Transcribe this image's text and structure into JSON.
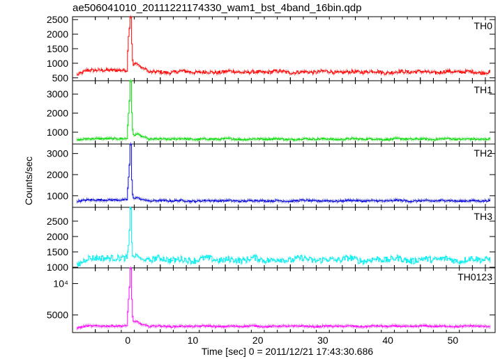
{
  "title": "ae506041010_20111221174330_wam1_bst_4band_16bin.qdp",
  "xlabel": "Time [sec] 0 = 2011/12/21 17:43:30.686",
  "ylabel": "Counts/sec",
  "chart_data": {
    "type": "line",
    "x_range": [
      -8.5,
      56.5
    ],
    "x_ticks": [
      0,
      10,
      20,
      30,
      40,
      50
    ],
    "x_tick_labels": [
      "0",
      "10",
      "20",
      "30",
      "40",
      "50"
    ],
    "panels": [
      {
        "name": "TH0",
        "color": "#ff0000",
        "ylim": [
          400,
          2600
        ],
        "y_ticks": [
          500,
          1000,
          1500,
          2000,
          2500
        ],
        "y_tick_labels": [
          "500",
          "1000",
          "1500",
          "2000",
          "2500"
        ],
        "baseline": 700,
        "noise": 55,
        "pre_start": 600,
        "pre_end": 760,
        "spike": [
          [
            -0.1,
            900
          ],
          [
            0.0,
            1900
          ],
          [
            0.15,
            2000
          ],
          [
            0.3,
            2600
          ],
          [
            0.45,
            2600
          ],
          [
            0.6,
            1500
          ],
          [
            0.75,
            900
          ],
          [
            1.0,
            980
          ],
          [
            1.4,
            1000
          ],
          [
            2.0,
            850
          ],
          [
            3.0,
            780
          ]
        ]
      },
      {
        "name": "TH1",
        "color": "#00dd00",
        "ylim": [
          380,
          3700
        ],
        "y_ticks": [
          1000,
          2000,
          3000
        ],
        "y_tick_labels": [
          "1000",
          "2000",
          "3000"
        ],
        "baseline": 640,
        "noise": 45,
        "pre_start": 580,
        "pre_end": 660,
        "spike": [
          [
            -0.1,
            800
          ],
          [
            0.0,
            1900
          ],
          [
            0.15,
            2100
          ],
          [
            0.3,
            3700
          ],
          [
            0.45,
            3700
          ],
          [
            0.6,
            1700
          ],
          [
            0.75,
            900
          ],
          [
            1.0,
            800
          ],
          [
            1.4,
            950
          ],
          [
            2.0,
            780
          ],
          [
            3.0,
            700
          ]
        ]
      },
      {
        "name": "TH2",
        "color": "#0000dd",
        "ylim": [
          450,
          3450
        ],
        "y_ticks": [
          1000,
          2000,
          3000
        ],
        "y_tick_labels": [
          "1000",
          "2000",
          "3000"
        ],
        "baseline": 760,
        "noise": 40,
        "pre_start": 740,
        "pre_end": 800,
        "spike": [
          [
            -0.1,
            900
          ],
          [
            0.0,
            1800
          ],
          [
            0.15,
            1950
          ],
          [
            0.3,
            3450
          ],
          [
            0.45,
            3450
          ],
          [
            0.6,
            1400
          ],
          [
            0.75,
            900
          ],
          [
            1.0,
            880
          ],
          [
            1.4,
            920
          ],
          [
            2.0,
            820
          ],
          [
            3.0,
            790
          ]
        ]
      },
      {
        "name": "TH3",
        "color": "#00eeee",
        "ylim": [
          980,
          2950
        ],
        "y_ticks": [
          1000,
          1500,
          2000,
          2500
        ],
        "y_tick_labels": [
          "1000",
          "1500",
          "2000",
          "2500"
        ],
        "baseline": 1250,
        "noise": 95,
        "pre_start": 1050,
        "pre_end": 1300,
        "spike": [
          [
            -0.1,
            1300
          ],
          [
            0.0,
            1650
          ],
          [
            0.15,
            1750
          ],
          [
            0.3,
            2950
          ],
          [
            0.45,
            2950
          ],
          [
            0.6,
            1600
          ],
          [
            0.75,
            1300
          ],
          [
            1.0,
            1350
          ],
          [
            1.4,
            1400
          ],
          [
            2.0,
            1250
          ],
          [
            3.0,
            1250
          ]
        ]
      },
      {
        "name": "TH0123",
        "color": "#ff00ff",
        "ylim": [
          2200,
          12500
        ],
        "y_ticks": [
          5000,
          10000
        ],
        "y_tick_labels": [
          "5000",
          "10⁴"
        ],
        "baseline": 3200,
        "noise": 120,
        "pre_start": 2950,
        "pre_end": 3250,
        "spike": [
          [
            -0.1,
            3800
          ],
          [
            0.0,
            7200
          ],
          [
            0.15,
            7800
          ],
          [
            0.3,
            12500
          ],
          [
            0.45,
            12500
          ],
          [
            0.6,
            6500
          ],
          [
            0.75,
            3900
          ],
          [
            1.0,
            3900
          ],
          [
            1.4,
            4000
          ],
          [
            2.0,
            3500
          ],
          [
            3.0,
            3300
          ]
        ]
      }
    ]
  }
}
